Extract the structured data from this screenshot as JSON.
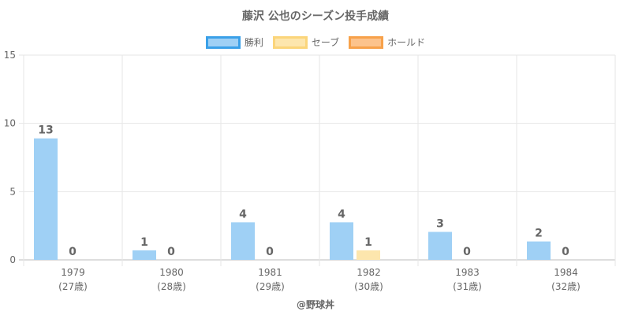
{
  "chart_data": {
    "type": "bar",
    "title": "藤沢 公也のシーズン投手成績",
    "categories": [
      "1979",
      "1980",
      "1981",
      "1982",
      "1983",
      "1984"
    ],
    "category_sublabels": [
      "(27歳)",
      "(28歳)",
      "(29歳)",
      "(30歳)",
      "(31歳)",
      "(32歳)"
    ],
    "series": [
      {
        "name": "勝利",
        "values": [
          13,
          1,
          4,
          4,
          3,
          2
        ],
        "color": "#9fd0f5",
        "border": "#3aa0e8"
      },
      {
        "name": "セーブ",
        "values": [
          0,
          0,
          0,
          1,
          0,
          0
        ],
        "color": "#fde6ad",
        "border": "#fbd57a"
      },
      {
        "name": "ホールド",
        "values": [
          0,
          0,
          0,
          0,
          0,
          0
        ],
        "color": "#fcc38c",
        "border": "#f7a14a"
      }
    ],
    "bar_heights_note_values": [
      8.9,
      0.7,
      2.75,
      2.75,
      2.05,
      1.35,
      0.7
    ],
    "display_values": [
      [
        13,
        0
      ],
      [
        1,
        0
      ],
      [
        4,
        0
      ],
      [
        4,
        1
      ],
      [
        3,
        0
      ],
      [
        2,
        0
      ]
    ],
    "ylim": [
      0,
      15
    ],
    "yticks": [
      0,
      5,
      10,
      15
    ],
    "xlabel": "",
    "ylabel": "",
    "grid": true,
    "legend_position": "top"
  },
  "footer": "@野球丼"
}
